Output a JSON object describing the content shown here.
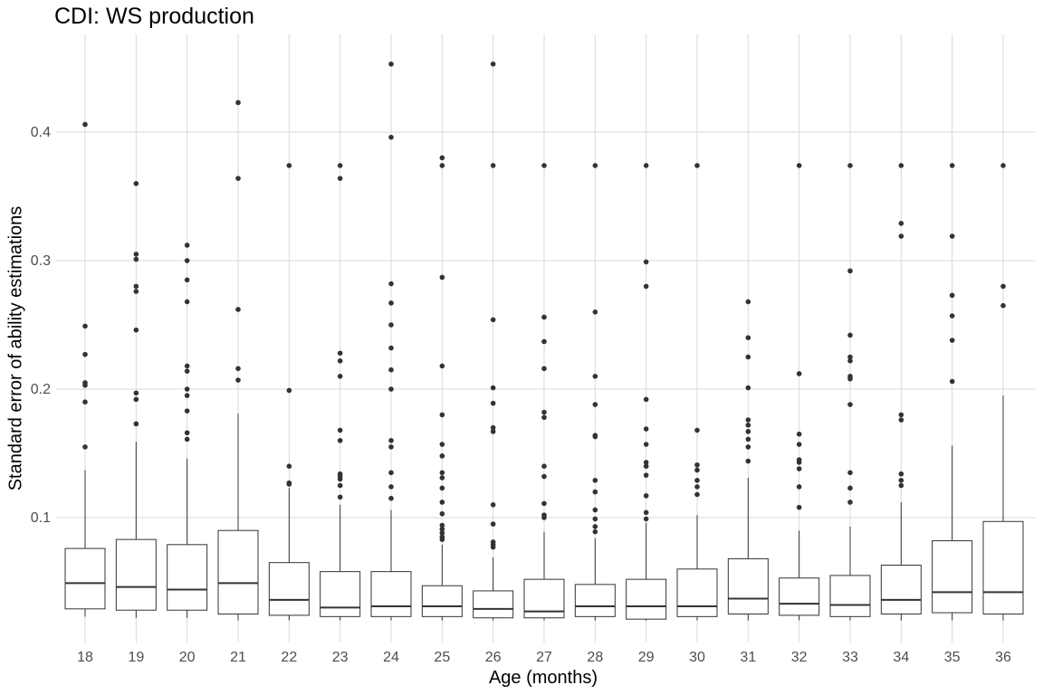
{
  "chart_data": {
    "type": "boxplot",
    "title": "CDI: WS production",
    "xlabel": "Age (months)",
    "ylabel": "Standard error of ability estimations",
    "ylim": [
      0.0,
      0.46
    ],
    "yticks": [
      0.1,
      0.2,
      0.3,
      0.4
    ],
    "grid": true,
    "categories": [
      "18",
      "19",
      "20",
      "21",
      "22",
      "23",
      "24",
      "25",
      "26",
      "27",
      "28",
      "29",
      "30",
      "31",
      "32",
      "33",
      "34",
      "35",
      "36"
    ],
    "boxes": [
      {
        "age": "18",
        "whisker_low": 0.023,
        "q1": 0.029,
        "median": 0.049,
        "q3": 0.076,
        "whisker_high": 0.137,
        "outliers": [
          0.155,
          0.19,
          0.203,
          0.205,
          0.227,
          0.249,
          0.406
        ]
      },
      {
        "age": "19",
        "whisker_low": 0.022,
        "q1": 0.028,
        "median": 0.046,
        "q3": 0.083,
        "whisker_high": 0.159,
        "outliers": [
          0.173,
          0.192,
          0.197,
          0.246,
          0.276,
          0.28,
          0.301,
          0.305,
          0.36
        ]
      },
      {
        "age": "20",
        "whisker_low": 0.022,
        "q1": 0.028,
        "median": 0.044,
        "q3": 0.079,
        "whisker_high": 0.146,
        "outliers": [
          0.161,
          0.166,
          0.183,
          0.195,
          0.2,
          0.214,
          0.218,
          0.268,
          0.285,
          0.3,
          0.312
        ]
      },
      {
        "age": "21",
        "whisker_low": 0.02,
        "q1": 0.025,
        "median": 0.049,
        "q3": 0.09,
        "whisker_high": 0.181,
        "outliers": [
          0.207,
          0.216,
          0.262,
          0.364,
          0.423
        ]
      },
      {
        "age": "22",
        "whisker_low": 0.02,
        "q1": 0.024,
        "median": 0.036,
        "q3": 0.065,
        "whisker_high": 0.123,
        "outliers": [
          0.126,
          0.127,
          0.14,
          0.199,
          0.374
        ]
      },
      {
        "age": "23",
        "whisker_low": 0.02,
        "q1": 0.023,
        "median": 0.03,
        "q3": 0.058,
        "whisker_high": 0.11,
        "outliers": [
          0.116,
          0.125,
          0.13,
          0.132,
          0.134,
          0.16,
          0.168,
          0.21,
          0.222,
          0.228,
          0.364,
          0.374
        ]
      },
      {
        "age": "24",
        "whisker_low": 0.02,
        "q1": 0.023,
        "median": 0.031,
        "q3": 0.058,
        "whisker_high": 0.106,
        "outliers": [
          0.115,
          0.124,
          0.135,
          0.155,
          0.16,
          0.2,
          0.215,
          0.232,
          0.25,
          0.267,
          0.282,
          0.396,
          0.453
        ]
      },
      {
        "age": "25",
        "whisker_low": 0.02,
        "q1": 0.023,
        "median": 0.031,
        "q3": 0.047,
        "whisker_high": 0.079,
        "outliers": [
          0.083,
          0.085,
          0.088,
          0.091,
          0.094,
          0.103,
          0.112,
          0.123,
          0.131,
          0.135,
          0.148,
          0.157,
          0.18,
          0.218,
          0.287,
          0.374,
          0.38
        ]
      },
      {
        "age": "26",
        "whisker_low": 0.02,
        "q1": 0.022,
        "median": 0.029,
        "q3": 0.043,
        "whisker_high": 0.069,
        "outliers": [
          0.077,
          0.079,
          0.081,
          0.095,
          0.11,
          0.167,
          0.17,
          0.189,
          0.201,
          0.254,
          0.374,
          0.453
        ]
      },
      {
        "age": "27",
        "whisker_low": 0.02,
        "q1": 0.022,
        "median": 0.027,
        "q3": 0.052,
        "whisker_high": 0.089,
        "outliers": [
          0.1,
          0.102,
          0.111,
          0.132,
          0.14,
          0.178,
          0.182,
          0.216,
          0.237,
          0.256,
          0.374
        ]
      },
      {
        "age": "28",
        "whisker_low": 0.02,
        "q1": 0.023,
        "median": 0.031,
        "q3": 0.048,
        "whisker_high": 0.084,
        "outliers": [
          0.089,
          0.093,
          0.099,
          0.106,
          0.12,
          0.129,
          0.163,
          0.164,
          0.188,
          0.21,
          0.26,
          0.374
        ]
      },
      {
        "age": "29",
        "whisker_low": 0.02,
        "q1": 0.021,
        "median": 0.031,
        "q3": 0.052,
        "whisker_high": 0.096,
        "outliers": [
          0.099,
          0.104,
          0.117,
          0.133,
          0.14,
          0.143,
          0.157,
          0.169,
          0.192,
          0.28,
          0.299,
          0.374
        ]
      },
      {
        "age": "30",
        "whisker_low": 0.02,
        "q1": 0.023,
        "median": 0.031,
        "q3": 0.06,
        "whisker_high": 0.102,
        "outliers": [
          0.118,
          0.124,
          0.129,
          0.137,
          0.141,
          0.168,
          0.374
        ]
      },
      {
        "age": "31",
        "whisker_low": 0.02,
        "q1": 0.025,
        "median": 0.037,
        "q3": 0.068,
        "whisker_high": 0.131,
        "outliers": [
          0.144,
          0.155,
          0.161,
          0.167,
          0.172,
          0.176,
          0.201,
          0.225,
          0.24,
          0.268
        ]
      },
      {
        "age": "32",
        "whisker_low": 0.02,
        "q1": 0.024,
        "median": 0.033,
        "q3": 0.053,
        "whisker_high": 0.09,
        "outliers": [
          0.108,
          0.124,
          0.138,
          0.143,
          0.145,
          0.157,
          0.165,
          0.212,
          0.374
        ]
      },
      {
        "age": "33",
        "whisker_low": 0.02,
        "q1": 0.023,
        "median": 0.032,
        "q3": 0.055,
        "whisker_high": 0.093,
        "outliers": [
          0.112,
          0.123,
          0.135,
          0.188,
          0.208,
          0.21,
          0.222,
          0.225,
          0.242,
          0.292,
          0.374
        ]
      },
      {
        "age": "34",
        "whisker_low": 0.02,
        "q1": 0.025,
        "median": 0.036,
        "q3": 0.063,
        "whisker_high": 0.112,
        "outliers": [
          0.125,
          0.129,
          0.134,
          0.176,
          0.18,
          0.319,
          0.329,
          0.374
        ]
      },
      {
        "age": "35",
        "whisker_low": 0.02,
        "q1": 0.026,
        "median": 0.042,
        "q3": 0.082,
        "whisker_high": 0.156,
        "outliers": [
          0.206,
          0.238,
          0.257,
          0.273,
          0.319,
          0.374
        ]
      },
      {
        "age": "36",
        "whisker_low": 0.02,
        "q1": 0.025,
        "median": 0.042,
        "q3": 0.097,
        "whisker_high": 0.195,
        "outliers": [
          0.265,
          0.28,
          0.374
        ]
      }
    ]
  }
}
